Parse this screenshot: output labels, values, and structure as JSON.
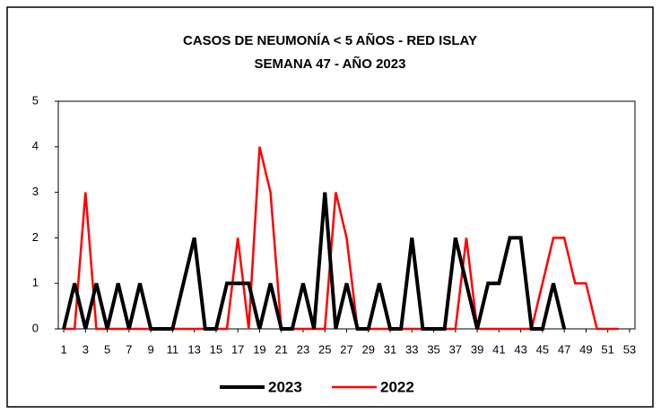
{
  "chart_data": {
    "type": "line",
    "title": [
      "CASOS DE NEUMONÍA < 5 AÑOS - RED ISLAY",
      "SEMANA  47 -  AÑO 2023"
    ],
    "x": [
      1,
      2,
      3,
      4,
      5,
      6,
      7,
      8,
      9,
      10,
      11,
      12,
      13,
      14,
      15,
      16,
      17,
      18,
      19,
      20,
      21,
      22,
      23,
      24,
      25,
      26,
      27,
      28,
      29,
      30,
      31,
      32,
      33,
      34,
      35,
      36,
      37,
      38,
      39,
      40,
      41,
      42,
      43,
      44,
      45,
      46,
      47,
      48,
      49,
      50,
      51,
      52,
      53
    ],
    "xlim": [
      0.5,
      53.5
    ],
    "xticks": [
      1,
      3,
      5,
      7,
      9,
      11,
      13,
      15,
      17,
      19,
      21,
      23,
      25,
      27,
      29,
      31,
      33,
      35,
      37,
      39,
      41,
      43,
      45,
      47,
      49,
      51,
      53
    ],
    "ylim": [
      0,
      5
    ],
    "yticks": [
      0,
      1,
      2,
      3,
      4,
      5
    ],
    "legend": "bottom",
    "series": [
      {
        "name": "2023",
        "color": "#000000",
        "values": [
          0,
          1,
          0,
          1,
          0,
          1,
          0,
          1,
          0,
          0,
          0,
          1,
          2,
          0,
          0,
          1,
          1,
          1,
          0,
          1,
          0,
          0,
          1,
          0,
          3,
          0,
          1,
          0,
          0,
          1,
          0,
          0,
          2,
          0,
          0,
          0,
          2,
          1,
          0,
          1,
          1,
          2,
          2,
          0,
          0,
          1,
          0,
          null,
          null,
          null,
          null,
          null,
          null
        ]
      },
      {
        "name": "2022",
        "color": "#ff0000",
        "values": [
          0,
          0,
          3,
          0,
          0,
          0,
          0,
          0,
          0,
          0,
          0,
          0,
          0,
          0,
          0,
          0,
          2,
          0,
          4,
          3,
          0,
          0,
          0,
          0,
          0,
          3,
          2,
          0,
          0,
          0,
          0,
          0,
          0,
          0,
          0,
          0,
          0,
          2,
          0,
          0,
          0,
          0,
          0,
          0,
          1,
          2,
          2,
          1,
          1,
          0,
          0,
          0,
          null
        ]
      }
    ]
  }
}
